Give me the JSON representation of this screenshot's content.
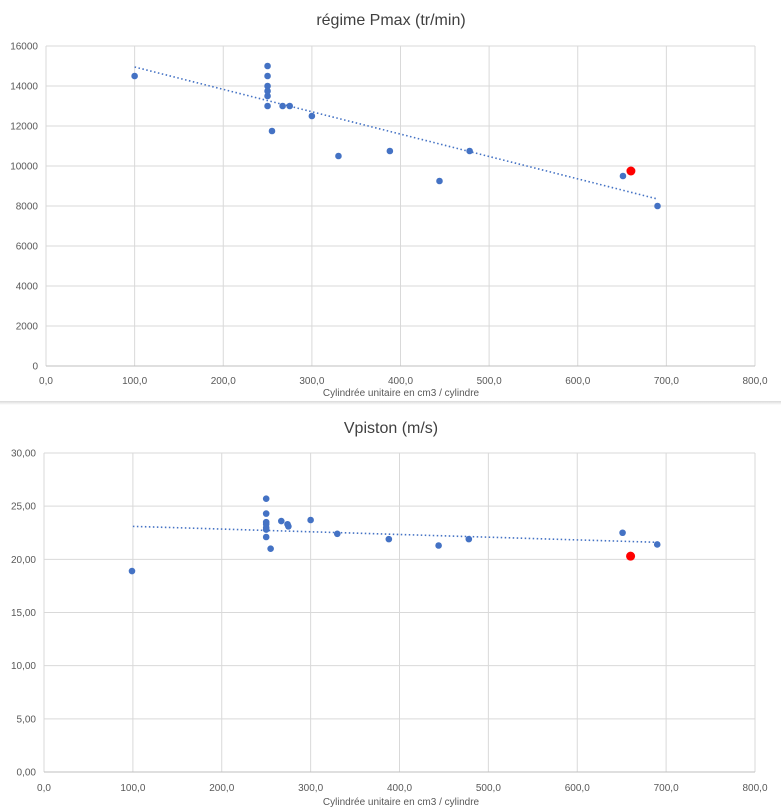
{
  "colors": {
    "point": "#4472c4",
    "highlight": "#ff0000",
    "trendline": "#4472c4",
    "grid": "#d9d9d9",
    "text": "#595959"
  },
  "chart_data": [
    {
      "type": "scatter",
      "title": "régime Pmax (tr/min)",
      "xlabel": "Cylindrée unitaire en cm3 / cylindre",
      "ylabel": "",
      "xlim": [
        0,
        800
      ],
      "ylim": [
        0,
        16000
      ],
      "xticks": [
        "0,0",
        "100,0",
        "200,0",
        "300,0",
        "400,0",
        "500,0",
        "600,0",
        "700,0",
        "800,0"
      ],
      "yticks": [
        "0",
        "2000",
        "4000",
        "6000",
        "8000",
        "10000",
        "12000",
        "14000",
        "16000"
      ],
      "grid": true,
      "legend": "none",
      "series": [
        {
          "points": [
            [
              100,
              14500
            ],
            [
              250,
              15000
            ],
            [
              250,
              14500
            ],
            [
              250,
              14000
            ],
            [
              250,
              13750
            ],
            [
              250,
              13500
            ],
            [
              250,
              13000
            ],
            [
              255,
              11750
            ],
            [
              267,
              13000
            ],
            [
              275,
              13000
            ],
            [
              300,
              12500
            ],
            [
              330,
              10500
            ],
            [
              388,
              10750
            ],
            [
              444,
              9250
            ],
            [
              478,
              10750
            ],
            [
              651,
              9500
            ],
            [
              690,
              8000
            ]
          ],
          "trendline": "linear",
          "trend_endpoints": [
            [
              100,
              14950
            ],
            [
              690,
              8350
            ]
          ]
        },
        {
          "points": [
            [
              660,
              9750
            ]
          ],
          "highlight": true
        }
      ]
    },
    {
      "type": "scatter",
      "title": "Vpiston (m/s)",
      "xlabel": "Cylindrée unitaire en cm3 / cylindre",
      "ylabel": "",
      "xlim": [
        0,
        800
      ],
      "ylim": [
        0,
        30
      ],
      "xticks": [
        "0,0",
        "100,0",
        "200,0",
        "300,0",
        "400,0",
        "500,0",
        "600,0",
        "700,0",
        "800,0"
      ],
      "yticks": [
        "0,00",
        "5,00",
        "10,00",
        "15,00",
        "20,00",
        "25,00",
        "30,00"
      ],
      "grid": true,
      "legend": "none",
      "series": [
        {
          "points": [
            [
              99,
              18.9
            ],
            [
              250,
              25.7
            ],
            [
              250,
              24.3
            ],
            [
              250,
              23.5
            ],
            [
              250,
              23.3
            ],
            [
              250,
              23.0
            ],
            [
              250,
              22.8
            ],
            [
              250,
              22.1
            ],
            [
              255,
              21.0
            ],
            [
              267,
              23.6
            ],
            [
              274,
              23.3
            ],
            [
              275,
              23.1
            ],
            [
              300,
              23.7
            ],
            [
              330,
              22.4
            ],
            [
              388,
              21.9
            ],
            [
              444,
              21.3
            ],
            [
              478,
              21.9
            ],
            [
              651,
              22.5
            ],
            [
              690,
              21.4
            ]
          ],
          "trendline": "linear",
          "trend_endpoints": [
            [
              100,
              23.1
            ],
            [
              690,
              21.6
            ]
          ]
        },
        {
          "points": [
            [
              660,
              20.3
            ]
          ],
          "highlight": true
        }
      ]
    }
  ]
}
